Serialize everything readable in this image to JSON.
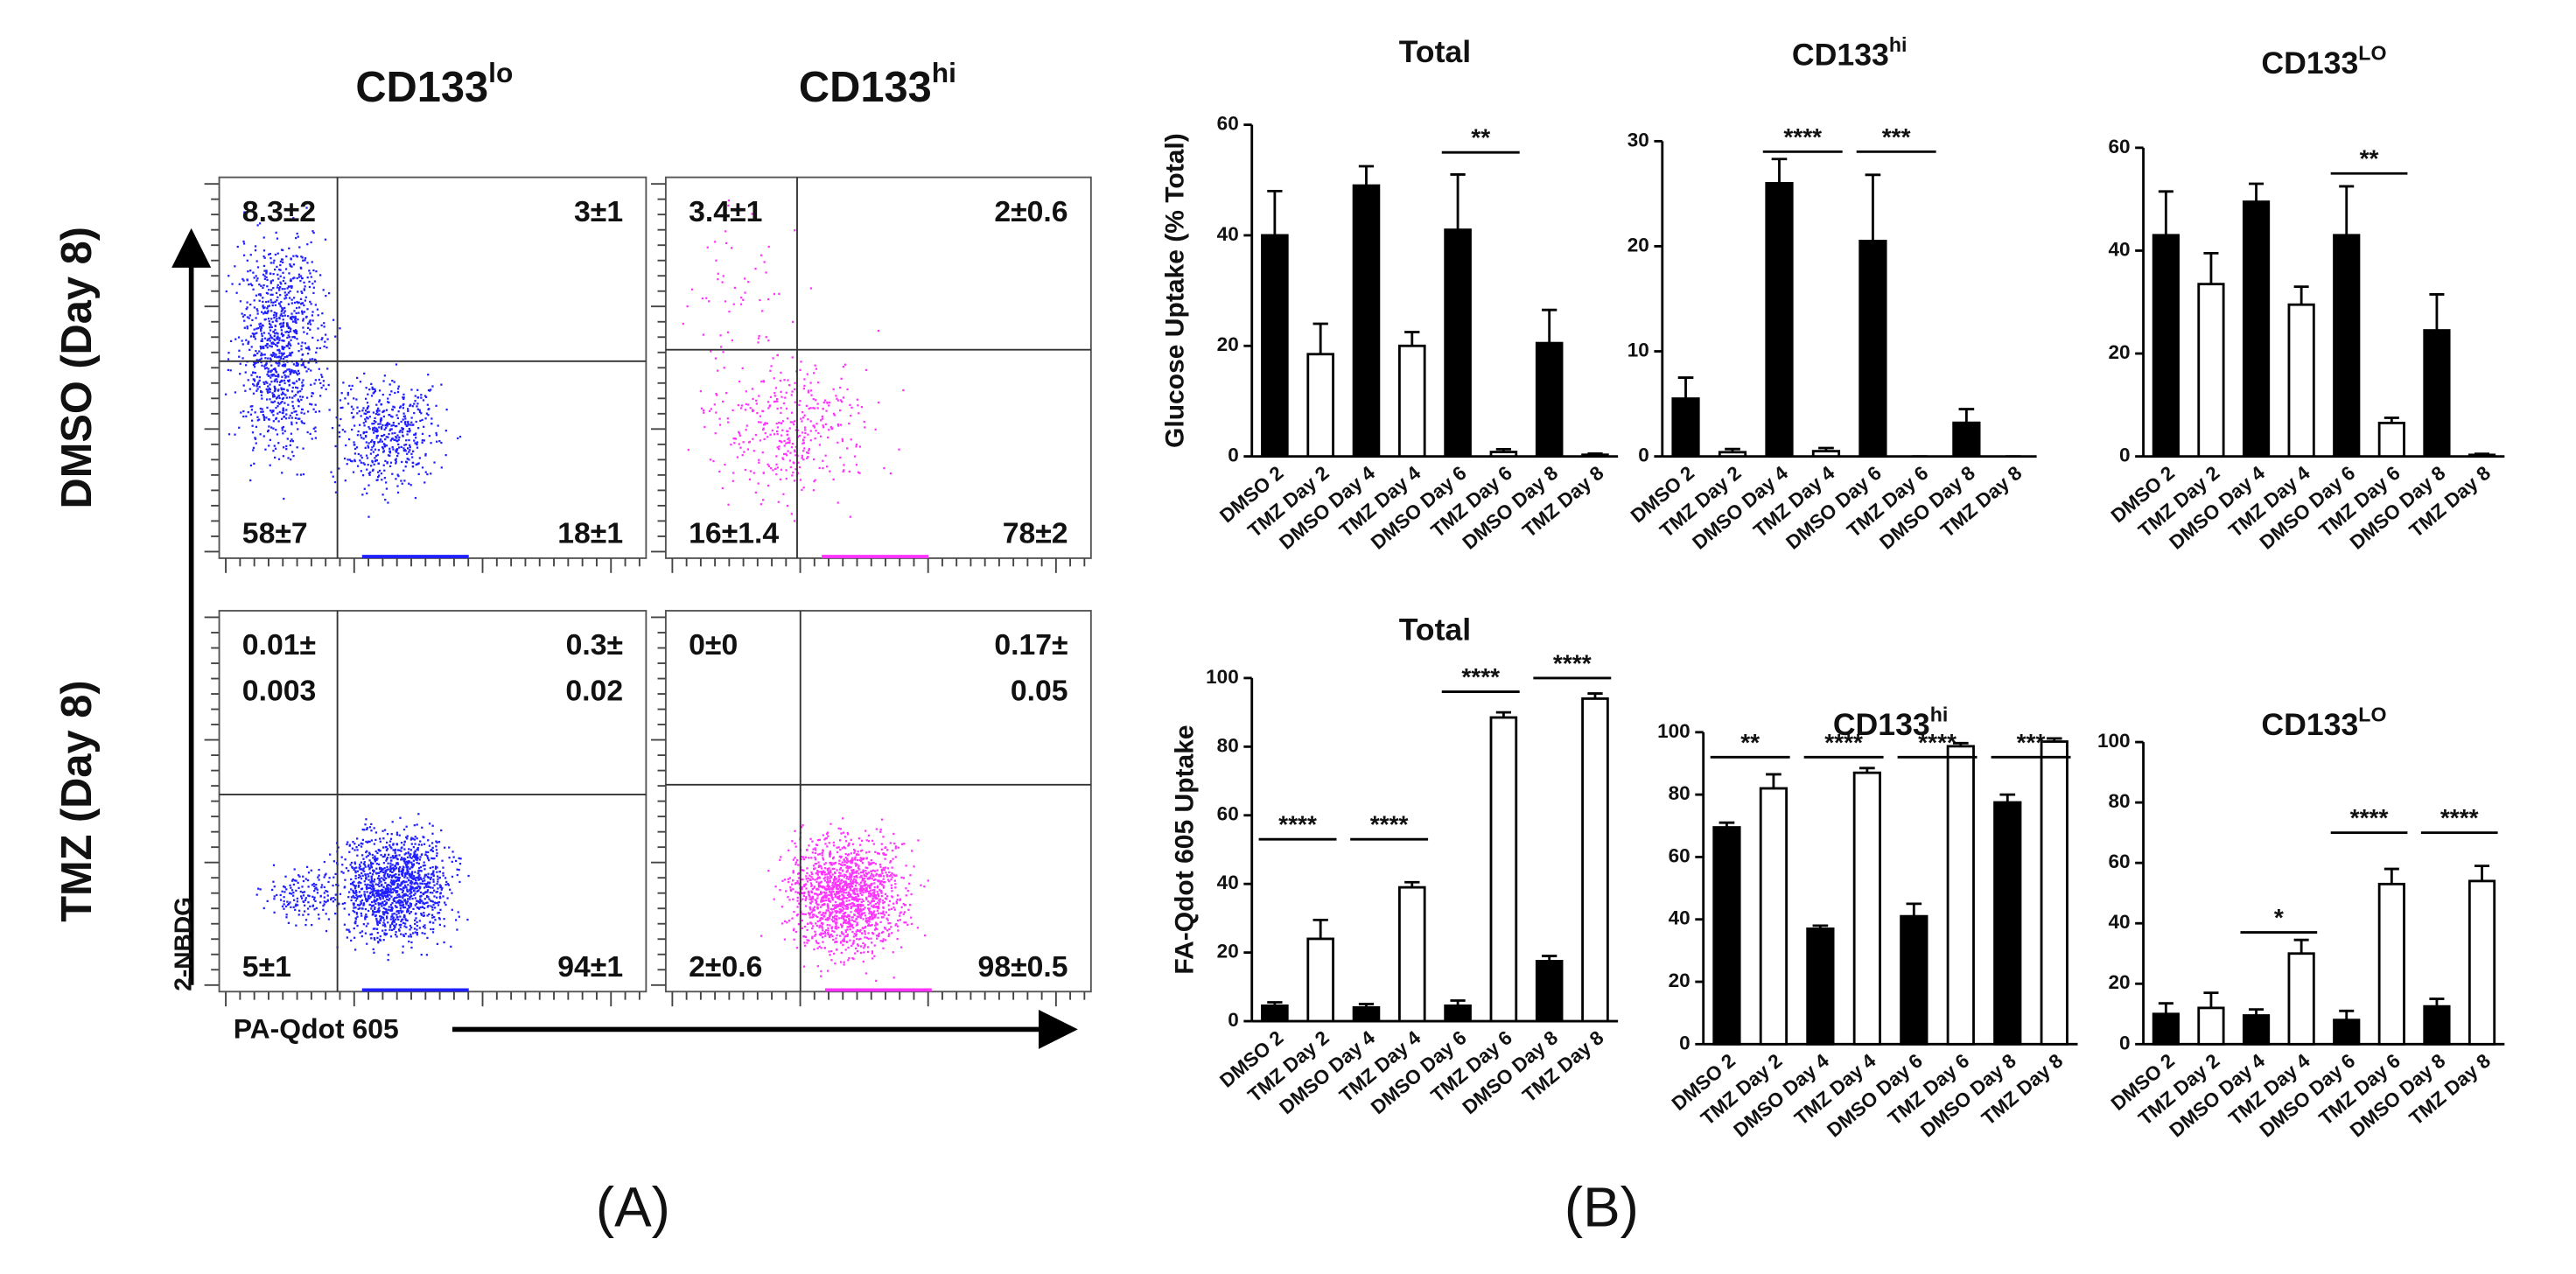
{
  "panel_labels": [
    "(A)",
    "(B)"
  ],
  "flow_panel": {
    "columns": [
      {
        "text": "CD133",
        "sup": "lo"
      },
      {
        "text": "CD133",
        "sup": "hi"
      }
    ],
    "rows": [
      "DMSO (Day 8)",
      "TMZ (Day 8)"
    ],
    "y_label": "2-NBDG",
    "x_label": "PA-Qdot 605"
  },
  "chart_data": [
    {
      "type": "flow",
      "color": "#1f1fff",
      "quadrants": [
        [
          "8.3±2"
        ],
        [
          "3±1"
        ],
        [
          "58±7"
        ],
        [
          "18±1"
        ]
      ]
    },
    {
      "type": "flow",
      "color": "#ff33ff",
      "quadrants": [
        [
          "3.4±1"
        ],
        [
          "2±0.6"
        ],
        [
          "16±1.4"
        ],
        [
          "78±2"
        ]
      ]
    },
    {
      "type": "flow",
      "color": "#1f1fff",
      "quadrants": [
        [
          "0.01±",
          "0.003"
        ],
        [
          "0.3±",
          "0.02"
        ],
        [
          "5±1"
        ],
        [
          "94±1"
        ]
      ]
    },
    {
      "type": "flow",
      "color": "#ff33ff",
      "quadrants": [
        [
          "0±0"
        ],
        [
          "0.17±",
          "0.05"
        ],
        [
          "2±0.6"
        ],
        [
          "98±0.5"
        ]
      ]
    },
    {
      "type": "bar",
      "title": "Total",
      "y_label": "Glucose Uptake (% Total)",
      "categories": [
        "DMSO 2",
        "TMZ Day 2",
        "DMSO Day 4",
        "TMZ Day 4",
        "DMSO Day 6",
        "TMZ Day 6",
        "DMSO Day 8",
        "TMZ Day 8"
      ],
      "values": [
        40,
        18.5,
        49,
        20,
        41,
        0.8,
        20.5,
        0.3
      ],
      "errors": [
        8,
        5.5,
        3.5,
        2.5,
        10,
        0.5,
        6,
        0.2
      ],
      "colors": [
        "#000000",
        "#ffffff",
        "#000000",
        "#ffffff",
        "#000000",
        "#ffffff",
        "#000000",
        "#ffffff"
      ],
      "ylim": [
        0,
        60
      ],
      "yticks": [
        0,
        20,
        40,
        60
      ],
      "annotations": [
        {
          "label": "**",
          "from": "DMSO Day 6",
          "to": "TMZ Day 6",
          "y": 55
        }
      ]
    },
    {
      "type": "bar",
      "title": "CD133",
      "title_sup": "hi",
      "categories": [
        "DMSO 2",
        "TMZ Day 2",
        "DMSO Day 4",
        "TMZ Day 4",
        "DMSO Day 6",
        "TMZ Day 6",
        "DMSO Day 8",
        "TMZ Day 8"
      ],
      "values": [
        5.5,
        0.4,
        26,
        0.5,
        20.5,
        0,
        3.2,
        0
      ],
      "errors": [
        2,
        0.3,
        2.3,
        0.3,
        6.3,
        0,
        1.3,
        0
      ],
      "colors": [
        "#000000",
        "#ffffff",
        "#000000",
        "#ffffff",
        "#000000",
        "#ffffff",
        "#000000",
        "#ffffff"
      ],
      "ylim": [
        0,
        30
      ],
      "yticks": [
        0,
        10,
        20,
        30
      ],
      "annotations": [
        {
          "label": "****",
          "from": "DMSO Day 4",
          "to": "TMZ Day 4",
          "y": 29
        },
        {
          "label": "***",
          "from": "DMSO Day 6",
          "to": "TMZ Day 6",
          "y": 29
        }
      ]
    },
    {
      "type": "bar",
      "title": "CD133",
      "title_sup": "LO",
      "categories": [
        "DMSO 2",
        "TMZ Day 2",
        "DMSO Day 4",
        "TMZ Day 4",
        "DMSO Day 6",
        "TMZ Day 6",
        "DMSO Day 8",
        "TMZ Day 8"
      ],
      "values": [
        43,
        33.5,
        49.5,
        29.5,
        43,
        6.5,
        24.5,
        0.3
      ],
      "errors": [
        8.5,
        6,
        3.5,
        3.5,
        9.5,
        1,
        7,
        0.2
      ],
      "colors": [
        "#000000",
        "#ffffff",
        "#000000",
        "#ffffff",
        "#000000",
        "#ffffff",
        "#000000",
        "#ffffff"
      ],
      "ylim": [
        0,
        60
      ],
      "yticks": [
        0,
        20,
        40,
        60
      ],
      "annotations": [
        {
          "label": "**",
          "from": "DMSO Day 6",
          "to": "TMZ Day 6",
          "y": 55
        }
      ]
    },
    {
      "type": "bar",
      "title": "Total",
      "y_label": "FA-Qdot 605 Uptake",
      "categories": [
        "DMSO 2",
        "TMZ Day 2",
        "DMSO Day 4",
        "TMZ Day 4",
        "DMSO Day 6",
        "TMZ Day 6",
        "DMSO Day 8",
        "TMZ Day 8"
      ],
      "values": [
        4.5,
        24,
        4,
        39,
        4.5,
        88.5,
        17.5,
        94
      ],
      "errors": [
        1,
        5.5,
        1,
        1.5,
        1.5,
        1.5,
        1.5,
        1.5
      ],
      "colors": [
        "#000000",
        "#ffffff",
        "#000000",
        "#ffffff",
        "#000000",
        "#ffffff",
        "#000000",
        "#ffffff"
      ],
      "ylim": [
        0,
        100
      ],
      "yticks": [
        0,
        20,
        40,
        60,
        80,
        100
      ],
      "annotations": [
        {
          "label": "****",
          "from": "DMSO 2",
          "to": "TMZ Day 2",
          "y": 53
        },
        {
          "label": "****",
          "from": "DMSO Day 4",
          "to": "TMZ Day 4",
          "y": 53
        },
        {
          "label": "****",
          "from": "DMSO Day 6",
          "to": "TMZ Day 6",
          "y": 96
        },
        {
          "label": "****",
          "from": "DMSO Day 8",
          "to": "TMZ Day 8",
          "y": 100
        }
      ]
    },
    {
      "type": "bar",
      "title": "CD133",
      "title_sup": "hi",
      "categories": [
        "DMSO 2",
        "TMZ Day 2",
        "DMSO Day 4",
        "TMZ Day 4",
        "DMSO Day 6",
        "TMZ Day 6",
        "DMSO Day 8",
        "TMZ Day 8"
      ],
      "values": [
        69.5,
        82,
        37,
        87,
        41,
        95.5,
        77.5,
        97
      ],
      "errors": [
        1.5,
        4.5,
        1,
        1.5,
        4,
        1,
        2.5,
        1
      ],
      "colors": [
        "#000000",
        "#ffffff",
        "#000000",
        "#ffffff",
        "#000000",
        "#ffffff",
        "#000000",
        "#ffffff"
      ],
      "ylim": [
        0,
        100
      ],
      "yticks": [
        0,
        20,
        40,
        60,
        80,
        100
      ],
      "annotations": [
        {
          "label": "**",
          "from": "DMSO 2",
          "to": "TMZ Day 2",
          "y": 92
        },
        {
          "label": "****",
          "from": "DMSO Day 4",
          "to": "TMZ Day 4",
          "y": 92
        },
        {
          "label": "****",
          "from": "DMSO Day 6",
          "to": "TMZ Day 6",
          "y": 92
        },
        {
          "label": "***",
          "from": "DMSO Day 8",
          "to": "TMZ Day 8",
          "y": 92
        }
      ]
    },
    {
      "type": "bar",
      "title": "CD133",
      "title_sup": "LO",
      "categories": [
        "DMSO 2",
        "TMZ Day 2",
        "DMSO Day 4",
        "TMZ Day 4",
        "DMSO Day 6",
        "TMZ Day 6",
        "DMSO Day 8",
        "TMZ Day 8"
      ],
      "values": [
        10,
        12,
        9.5,
        30,
        8,
        53,
        12.5,
        54
      ],
      "errors": [
        3.5,
        5,
        2,
        4.5,
        3,
        5,
        2.5,
        5
      ],
      "colors": [
        "#000000",
        "#ffffff",
        "#000000",
        "#ffffff",
        "#000000",
        "#ffffff",
        "#000000",
        "#ffffff"
      ],
      "ylim": [
        0,
        100
      ],
      "yticks": [
        0,
        20,
        40,
        60,
        80,
        100
      ],
      "annotations": [
        {
          "label": "*",
          "from": "DMSO Day 4",
          "to": "TMZ Day 4",
          "y": 37
        },
        {
          "label": "****",
          "from": "DMSO Day 6",
          "to": "TMZ Day 6",
          "y": 70
        },
        {
          "label": "****",
          "from": "DMSO Day 8",
          "to": "TMZ Day 8",
          "y": 70
        }
      ]
    }
  ]
}
